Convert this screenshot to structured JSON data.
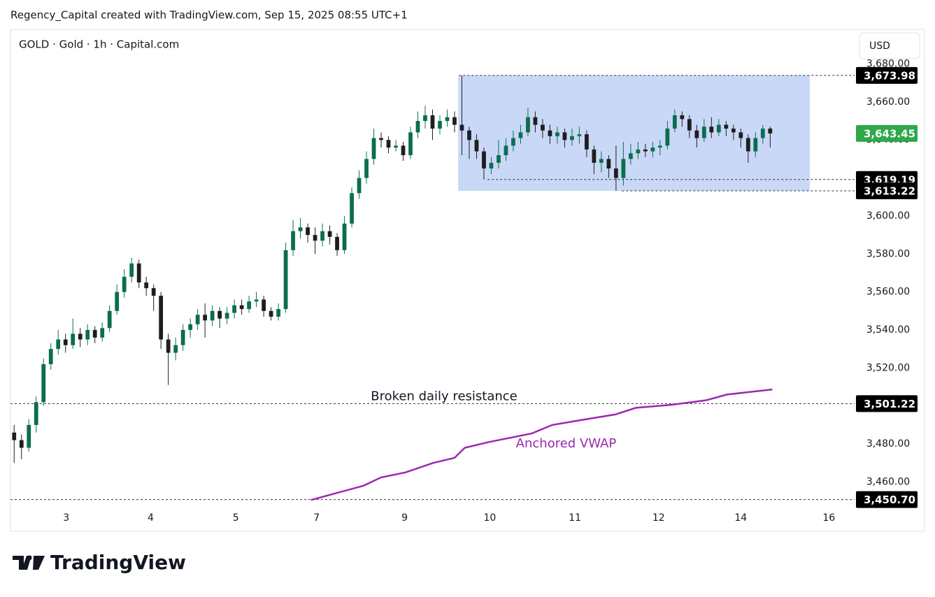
{
  "header": "Regency_Capital created with TradingView.com, Sep 15, 2025 08:55 UTC+1",
  "logo": "TradingView",
  "chart_data": {
    "type": "candlestick",
    "title": "GOLD · Gold · 1h · Capital.com",
    "currency": "USD",
    "up_color": "#0b6e4f",
    "down_color": "#1e1e1e",
    "xlim": [
      0,
      115
    ],
    "xticks": [
      {
        "value": 7.6,
        "label": "3"
      },
      {
        "value": 19.1,
        "label": "4"
      },
      {
        "value": 30.7,
        "label": "5"
      },
      {
        "value": 41.7,
        "label": "7"
      },
      {
        "value": 53.7,
        "label": "9"
      },
      {
        "value": 65.3,
        "label": "10"
      },
      {
        "value": 76.9,
        "label": "11"
      },
      {
        "value": 88.3,
        "label": "12"
      },
      {
        "value": 99.5,
        "label": "14"
      },
      {
        "value": 111.5,
        "label": "16"
      }
    ],
    "ylim": [
      3446.9,
      3681.3
    ],
    "yticks": [
      {
        "value": 3460,
        "label": "3,460.00"
      },
      {
        "value": 3480,
        "label": "3,480.00"
      },
      {
        "value": 3500,
        "label": "3,500.00"
      },
      {
        "value": 3520,
        "label": "3,520.00"
      },
      {
        "value": 3540,
        "label": "3,540.00"
      },
      {
        "value": 3560,
        "label": "3,560.00"
      },
      {
        "value": 3580,
        "label": "3,580.00"
      },
      {
        "value": 3600,
        "label": "3,600.00"
      },
      {
        "value": 3620,
        "label": "3,620.00"
      },
      {
        "value": 3640,
        "label": "3,640.00"
      },
      {
        "value": 3660,
        "label": "3,660.00"
      },
      {
        "value": 3680,
        "label": "3,680.00"
      }
    ],
    "open": [
      3486,
      3482,
      3478,
      3490,
      3502,
      3522,
      3530,
      3535,
      3532,
      3538,
      3535,
      3540,
      3536,
      3541,
      3550,
      3560,
      3568,
      3575,
      3565,
      3562,
      3558,
      3535,
      3528,
      3532,
      3540,
      3543,
      3548,
      3545,
      3550,
      3546,
      3549,
      3553,
      3551,
      3555,
      3556,
      3550,
      3547,
      3551,
      3582,
      3592,
      3594,
      3590,
      3587,
      3592,
      3589,
      3582,
      3596,
      3612,
      3620,
      3630,
      3641,
      3640,
      3636,
      3637,
      3632,
      3644,
      3650,
      3653,
      3646,
      3650,
      3652,
      3648,
      3645,
      3640,
      3634,
      3625,
      3628,
      3632,
      3637,
      3641,
      3644,
      3652,
      3648,
      3645,
      3642,
      3644,
      3640,
      3642,
      3643,
      3635,
      3628,
      3630,
      3625,
      3620,
      3630,
      3633,
      3635,
      3634,
      3636,
      3637,
      3646,
      3653,
      3651,
      3645,
      3641,
      3647,
      3644,
      3648,
      3646,
      3644,
      3641,
      3634,
      3641,
      3646
    ],
    "high": [
      3490,
      3485,
      3493,
      3505,
      3525,
      3533,
      3540,
      3538,
      3546,
      3541,
      3543,
      3542,
      3544,
      3553,
      3564,
      3572,
      3578,
      3577,
      3568,
      3564,
      3560,
      3538,
      3536,
      3543,
      3546,
      3551,
      3554,
      3553,
      3552,
      3552,
      3556,
      3556,
      3558,
      3560,
      3558,
      3552,
      3554,
      3586,
      3598,
      3599,
      3596,
      3594,
      3596,
      3595,
      3591,
      3600,
      3615,
      3624,
      3634,
      3646,
      3644,
      3642,
      3640,
      3639,
      3647,
      3655,
      3658,
      3656,
      3653,
      3656,
      3655,
      3673.98,
      3647,
      3643,
      3636,
      3631,
      3640,
      3641,
      3645,
      3648,
      3657,
      3655,
      3651,
      3648,
      3647,
      3646,
      3646,
      3647,
      3645,
      3637,
      3634,
      3632,
      3637,
      3639,
      3638,
      3639,
      3638,
      3639,
      3640,
      3650,
      3656,
      3655,
      3653,
      3648,
      3651,
      3652,
      3651,
      3650,
      3648,
      3646,
      3643,
      3644,
      3648,
      3647
    ],
    "low": [
      3470,
      3472,
      3476,
      3486,
      3500,
      3519,
      3527,
      3528,
      3530,
      3531,
      3532,
      3533,
      3534,
      3539,
      3548,
      3557,
      3565,
      3562,
      3558,
      3550,
      3530,
      3511,
      3524,
      3529,
      3536,
      3540,
      3536,
      3542,
      3541,
      3543,
      3546,
      3548,
      3549,
      3552,
      3547,
      3545,
      3545,
      3549,
      3579,
      3588,
      3586,
      3580,
      3584,
      3585,
      3579,
      3580,
      3594,
      3609,
      3617,
      3627,
      3636,
      3633,
      3634,
      3629,
      3630,
      3641,
      3646,
      3640,
      3643,
      3647,
      3644,
      3632,
      3630,
      3630,
      3619.19,
      3622,
      3625,
      3629,
      3634,
      3638,
      3642,
      3644,
      3641,
      3638,
      3638,
      3636,
      3637,
      3638,
      3631,
      3622,
      3623,
      3620,
      3613.22,
      3616,
      3627,
      3630,
      3631,
      3631,
      3632,
      3635,
      3644,
      3647,
      3641,
      3636,
      3639,
      3641,
      3642,
      3642,
      3640,
      3636,
      3628,
      3631,
      3638,
      3636
    ],
    "close": [
      3482,
      3478,
      3490,
      3502,
      3522,
      3530,
      3535,
      3532,
      3538,
      3535,
      3540,
      3536,
      3541,
      3550,
      3560,
      3568,
      3575,
      3565,
      3562,
      3558,
      3535,
      3528,
      3532,
      3540,
      3543,
      3548,
      3545,
      3550,
      3546,
      3549,
      3553,
      3551,
      3555,
      3556,
      3550,
      3547,
      3551,
      3582,
      3592,
      3594,
      3590,
      3587,
      3592,
      3589,
      3582,
      3596,
      3612,
      3620,
      3630,
      3641,
      3640,
      3636,
      3637,
      3632,
      3644,
      3650,
      3653,
      3646,
      3650,
      3652,
      3648,
      3645,
      3640,
      3634,
      3625,
      3628,
      3632,
      3637,
      3641,
      3644,
      3652,
      3648,
      3645,
      3642,
      3644,
      3640,
      3642,
      3643,
      3635,
      3628,
      3630,
      3625,
      3620,
      3630,
      3633,
      3635,
      3634,
      3636,
      3637,
      3646,
      3653,
      3651,
      3645,
      3641,
      3647,
      3644,
      3648,
      3646,
      3644,
      3641,
      3634,
      3641,
      3646,
      3643.45
    ],
    "rectangle": {
      "x": [
        61.0,
        108.9
      ],
      "y": [
        3613.22,
        3673.98
      ],
      "color": "#c9d8f7"
    },
    "lines": [
      {
        "name": "Anchored VWAP",
        "color": "#9c27b0",
        "x": [
          40.95,
          48.1,
          50.5,
          53.8,
          57.6,
          60.5,
          61.9,
          65.2,
          71.0,
          73.8,
          77.6,
          82.4,
          85.2,
          90.0,
          94.8,
          97.6,
          103.8
        ],
        "values": [
          3450.5,
          3458,
          3462.4,
          3465,
          3470,
          3472.7,
          3478,
          3481,
          3485.5,
          3490,
          3492.5,
          3495.5,
          3499,
          3500.6,
          3503,
          3506,
          3508.7
        ]
      }
    ],
    "levels": [
      {
        "value": 3673.98,
        "label": "3,673.98",
        "x": 61.1
      },
      {
        "value": 3619.19,
        "label": "3,619.19",
        "x": 65.0
      },
      {
        "value": 3613.22,
        "label": "3,613.22",
        "x": 83.3
      },
      {
        "value": 3501.22,
        "label": "3,501.22",
        "x": 0,
        "note": "Broken daily resistance"
      },
      {
        "value": 3450.7,
        "label": "3,450.70",
        "x": 0
      }
    ],
    "last_price": {
      "value": 3643.45,
      "label": "3,643.45",
      "color": "#2ea84a"
    }
  }
}
